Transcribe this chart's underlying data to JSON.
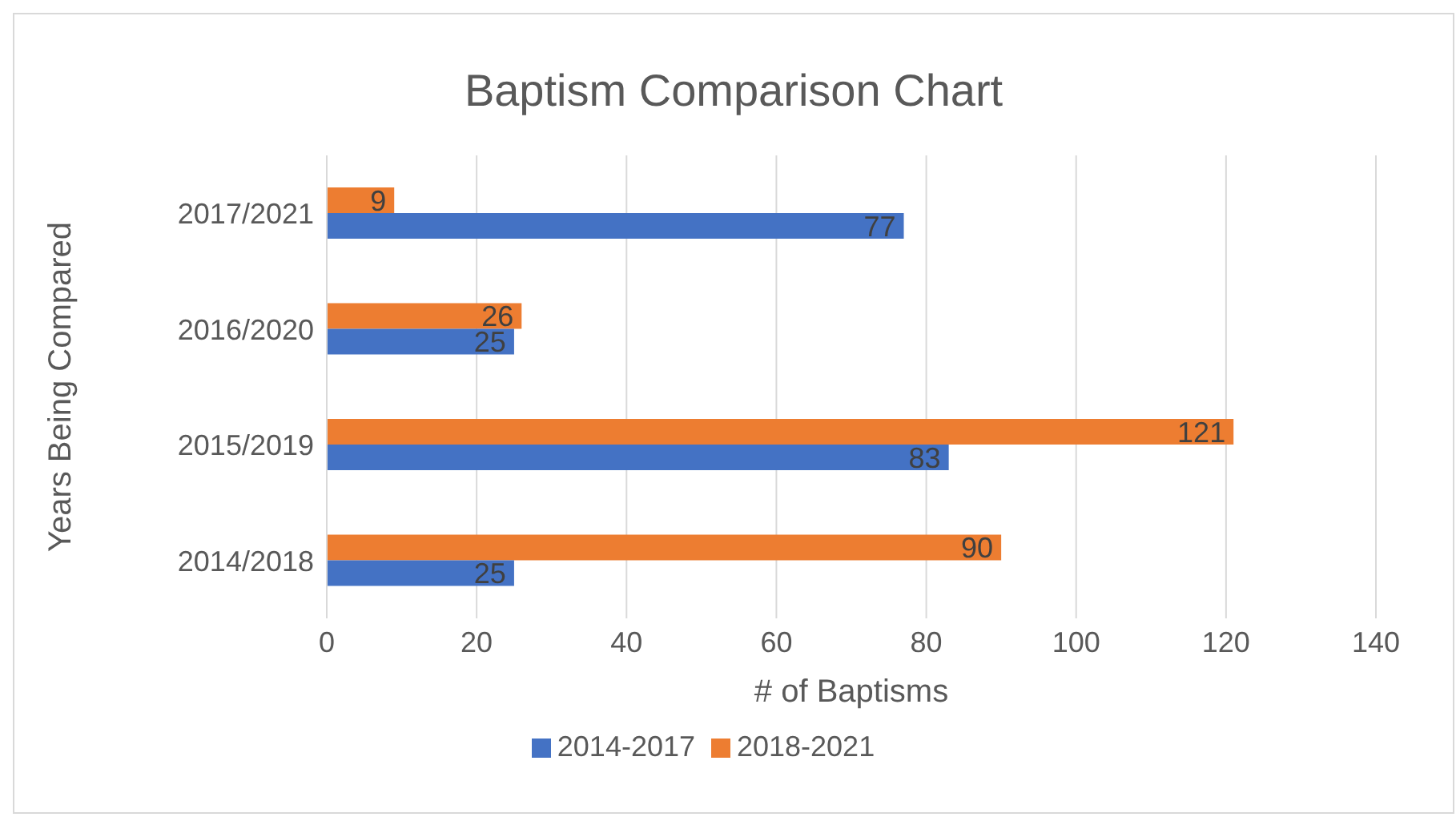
{
  "chart_data": {
    "type": "bar",
    "orientation": "horizontal",
    "title": "Baptism Comparison Chart",
    "xlabel": "# of Baptisms",
    "ylabel": "Years Being Compared",
    "categories": [
      "2017/2021",
      "2016/2020",
      "2015/2019",
      "2014/2018"
    ],
    "series": [
      {
        "name": "2018-2021",
        "color": "#ed7d31",
        "values": [
          9,
          26,
          121,
          90
        ]
      },
      {
        "name": "2014-2017",
        "color": "#4472c4",
        "values": [
          77,
          25,
          83,
          25
        ]
      }
    ],
    "xlim": [
      0,
      140
    ],
    "xticks": [
      0,
      20,
      40,
      60,
      80,
      100,
      120,
      140
    ],
    "grid": "x",
    "legend": "bottom",
    "data_labels": true
  }
}
